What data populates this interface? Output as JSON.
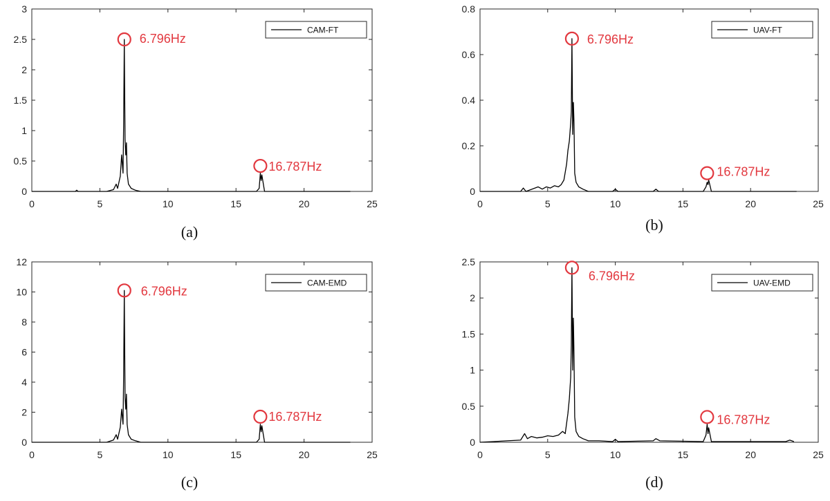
{
  "colors": {
    "trace": "#000000",
    "annotation": "#e2383f",
    "axis": "#262626"
  },
  "chart_data": [
    {
      "type": "line",
      "panel_label": "(a)",
      "legend": {
        "entries": [
          "CAM-FT"
        ],
        "placement": "top-right"
      },
      "xlim": [
        0,
        25
      ],
      "ylim": [
        0,
        3
      ],
      "xticks": [
        0,
        5,
        10,
        15,
        20,
        25
      ],
      "yticks": [
        0,
        0.5,
        1,
        1.5,
        2,
        2.5,
        3
      ],
      "grid": false,
      "series": [
        {
          "name": "CAM-FT",
          "x": [
            0,
            3.2,
            3.3,
            3.4,
            5.5,
            6.0,
            6.2,
            6.3,
            6.5,
            6.6,
            6.7,
            6.75,
            6.796,
            6.85,
            6.9,
            6.95,
            7.0,
            7.1,
            7.3,
            7.6,
            8.0,
            16.5,
            16.7,
            16.787,
            16.85,
            16.9,
            17.1,
            23.4
          ],
          "y": [
            0,
            0,
            0.02,
            0,
            0,
            0.03,
            0.12,
            0.05,
            0.25,
            0.6,
            0.3,
            1.15,
            2.5,
            0.85,
            0.6,
            0.8,
            0.3,
            0.12,
            0.05,
            0.02,
            0,
            0,
            0.05,
            0.3,
            0.18,
            0.27,
            0,
            0
          ]
        }
      ],
      "annotations": [
        {
          "text": "6.796Hz",
          "x": 6.796,
          "y": 2.5
        },
        {
          "text": "16.787Hz",
          "x": 16.787,
          "y": 0.42
        }
      ]
    },
    {
      "type": "line",
      "panel_label": "(b)",
      "legend": {
        "entries": [
          "UAV-FT"
        ],
        "placement": "top-right"
      },
      "xlim": [
        0,
        25
      ],
      "ylim": [
        0,
        0.8
      ],
      "xticks": [
        0,
        5,
        10,
        15,
        20,
        25
      ],
      "yticks": [
        0,
        0.2,
        0.4,
        0.6,
        0.8
      ],
      "grid": false,
      "series": [
        {
          "name": "UAV-FT",
          "x": [
            0,
            3.0,
            3.2,
            3.4,
            4.3,
            4.6,
            4.9,
            5.2,
            5.5,
            5.8,
            6.0,
            6.2,
            6.4,
            6.5,
            6.6,
            6.7,
            6.75,
            6.796,
            6.85,
            6.9,
            6.95,
            7.0,
            7.1,
            7.3,
            7.6,
            8.0,
            9.8,
            10.0,
            10.2,
            12.8,
            13.0,
            13.2,
            16.5,
            16.7,
            16.787,
            16.85,
            16.9,
            17.1,
            23.4
          ],
          "y": [
            0,
            0,
            0.015,
            0,
            0.02,
            0.01,
            0.02,
            0.015,
            0.025,
            0.02,
            0.03,
            0.05,
            0.12,
            0.18,
            0.22,
            0.3,
            0.35,
            0.67,
            0.25,
            0.39,
            0.3,
            0.08,
            0.04,
            0.02,
            0.01,
            0,
            0,
            0.01,
            0,
            0,
            0.01,
            0,
            0,
            0.02,
            0.04,
            0.03,
            0.05,
            0,
            0
          ]
        }
      ],
      "annotations": [
        {
          "text": "6.796Hz",
          "x": 6.796,
          "y": 0.67
        },
        {
          "text": "16.787Hz",
          "x": 16.787,
          "y": 0.08
        }
      ]
    },
    {
      "type": "line",
      "panel_label": "(c)",
      "legend": {
        "entries": [
          "CAM-EMD"
        ],
        "placement": "top-right"
      },
      "xlim": [
        0,
        25
      ],
      "ylim": [
        0,
        12
      ],
      "xticks": [
        0,
        5,
        10,
        15,
        20,
        25
      ],
      "yticks": [
        0,
        2,
        4,
        6,
        8,
        10,
        12
      ],
      "grid": false,
      "series": [
        {
          "name": "CAM-EMD",
          "x": [
            0,
            5.5,
            6.0,
            6.2,
            6.3,
            6.5,
            6.6,
            6.7,
            6.75,
            6.796,
            6.85,
            6.9,
            6.95,
            7.0,
            7.1,
            7.3,
            7.6,
            8.0,
            16.5,
            16.7,
            16.787,
            16.85,
            16.9,
            17.1,
            23.4
          ],
          "y": [
            0,
            0,
            0.15,
            0.5,
            0.2,
            1.0,
            2.2,
            1.2,
            4.6,
            10.1,
            3.0,
            2.2,
            3.2,
            1.2,
            0.5,
            0.2,
            0.1,
            0,
            0,
            0.2,
            1.2,
            0.7,
            1.1,
            0,
            0
          ]
        }
      ],
      "annotations": [
        {
          "text": "6.796Hz",
          "x": 6.796,
          "y": 10.1
        },
        {
          "text": "16.787Hz",
          "x": 16.787,
          "y": 1.7
        }
      ]
    },
    {
      "type": "line",
      "panel_label": "(d)",
      "legend": {
        "entries": [
          "UAV-EMD"
        ],
        "placement": "top-right"
      },
      "xlim": [
        0,
        25
      ],
      "ylim": [
        0,
        2.5
      ],
      "xticks": [
        0,
        5,
        10,
        15,
        20,
        25
      ],
      "yticks": [
        0,
        0.5,
        1,
        1.5,
        2,
        2.5
      ],
      "grid": false,
      "series": [
        {
          "name": "UAV-EMD",
          "x": [
            0,
            1.0,
            2.0,
            3.0,
            3.3,
            3.5,
            3.8,
            4.2,
            4.6,
            5.0,
            5.4,
            5.8,
            6.1,
            6.3,
            6.5,
            6.6,
            6.7,
            6.75,
            6.796,
            6.85,
            6.9,
            6.95,
            7.0,
            7.1,
            7.3,
            7.6,
            8.0,
            8.8,
            9.8,
            10.0,
            10.2,
            12.8,
            13.0,
            13.3,
            16.5,
            16.7,
            16.787,
            16.85,
            16.9,
            17.1,
            22.6,
            22.9,
            23.2
          ],
          "y": [
            0,
            0.01,
            0.02,
            0.03,
            0.12,
            0.05,
            0.08,
            0.06,
            0.07,
            0.09,
            0.08,
            0.1,
            0.15,
            0.12,
            0.4,
            0.6,
            0.9,
            1.35,
            2.42,
            1.0,
            1.72,
            1.2,
            0.35,
            0.15,
            0.08,
            0.05,
            0.02,
            0.02,
            0.01,
            0.04,
            0.01,
            0.02,
            0.05,
            0.02,
            0.01,
            0.1,
            0.25,
            0.12,
            0.2,
            0.01,
            0.01,
            0.03,
            0.01
          ]
        }
      ],
      "annotations": [
        {
          "text": "6.796Hz",
          "x": 6.796,
          "y": 2.42
        },
        {
          "text": "16.787Hz",
          "x": 16.787,
          "y": 0.35
        }
      ]
    }
  ]
}
